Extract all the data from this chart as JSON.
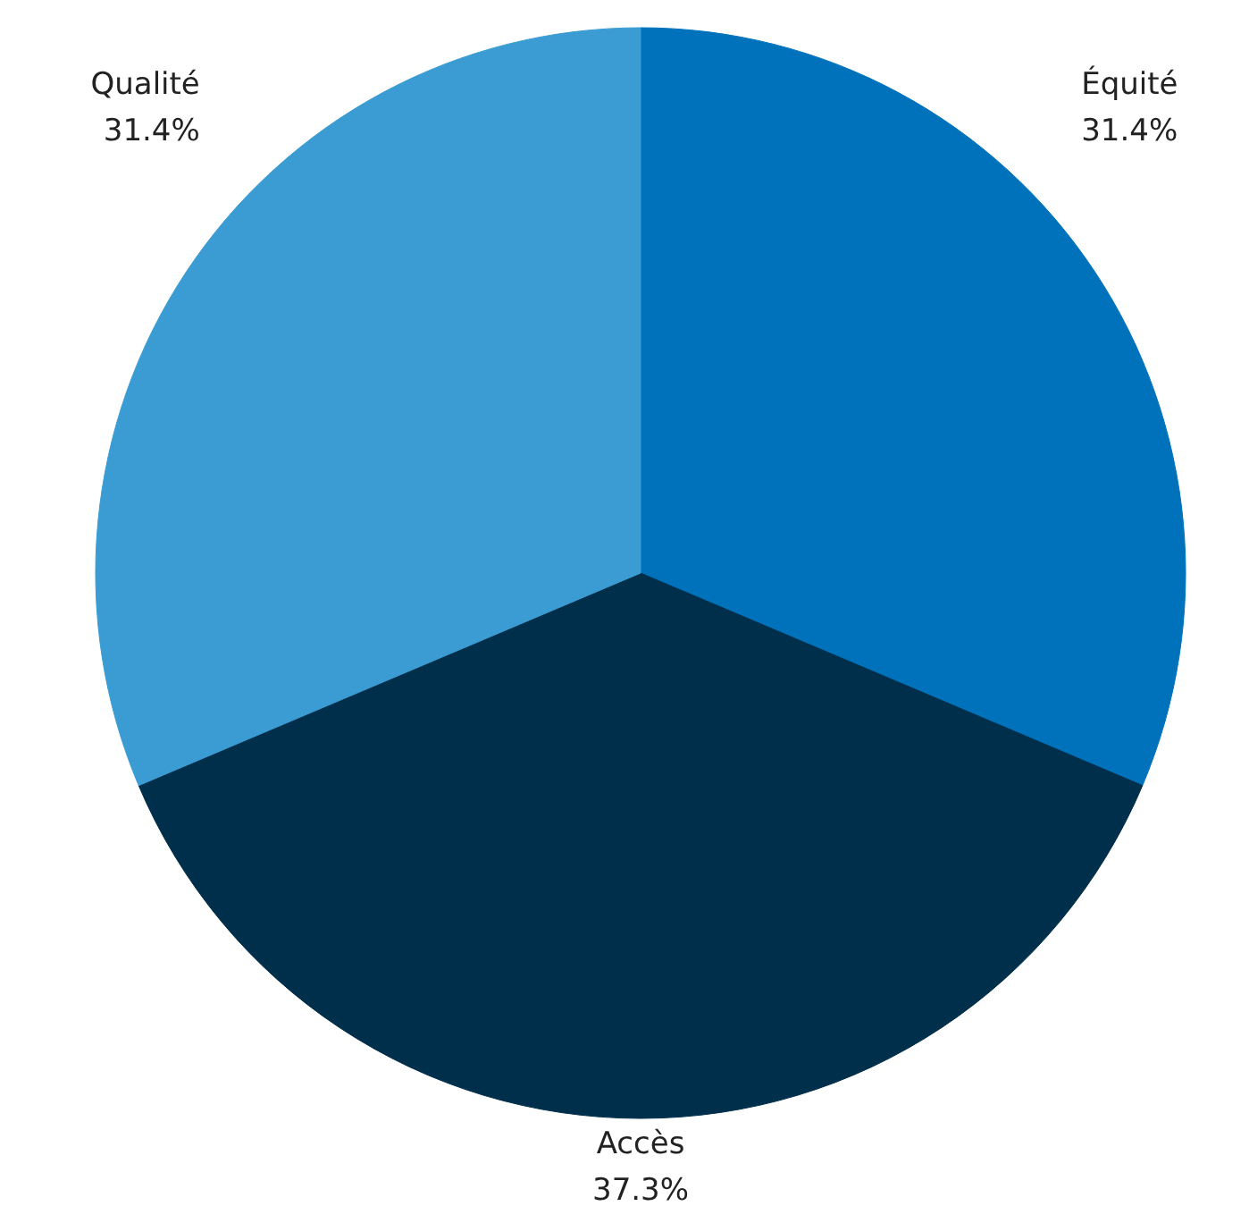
{
  "chart_data": {
    "type": "pie",
    "categories": [
      "Équité",
      "Accès",
      "Qualité"
    ],
    "values": [
      31.4,
      37.3,
      31.4
    ],
    "value_labels": [
      "31.4%",
      "37.3%",
      "31.4%"
    ],
    "colors": [
      "#0072bc",
      "#002f4c",
      "#3a9cd2"
    ]
  }
}
